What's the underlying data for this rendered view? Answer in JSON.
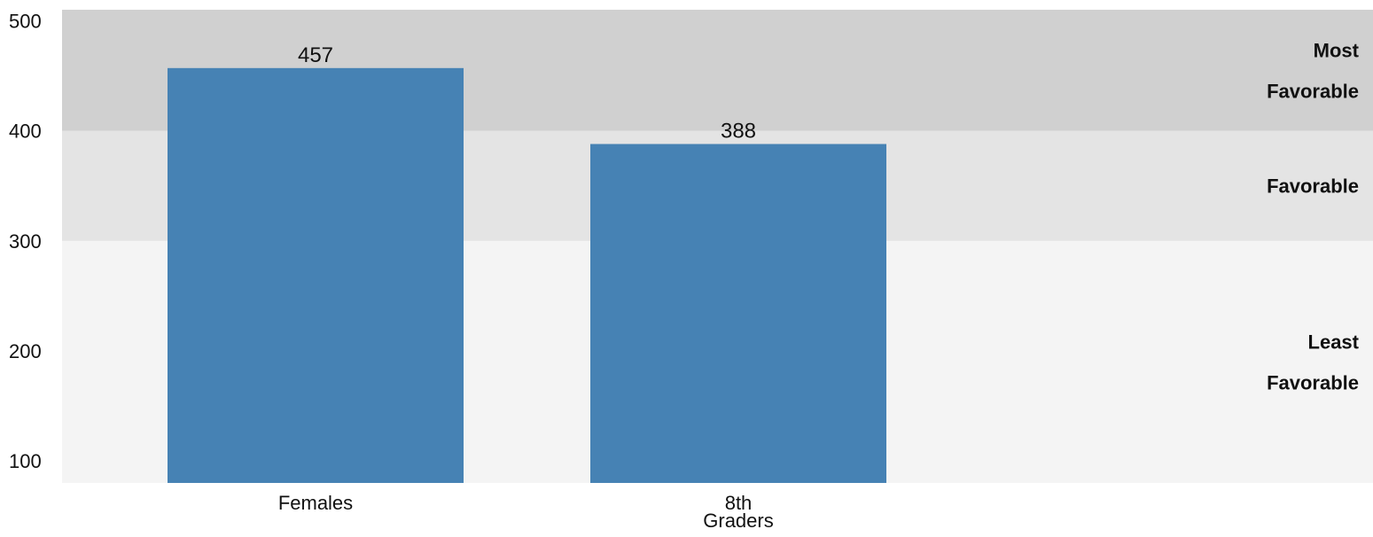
{
  "chart_data": {
    "type": "bar",
    "categories": [
      "Females",
      "8th Graders"
    ],
    "category_lines": [
      [
        "Females"
      ],
      [
        "8th",
        "Graders"
      ]
    ],
    "values": [
      457,
      388
    ],
    "value_labels": [
      "457",
      "388"
    ],
    "ylim": [
      80,
      510
    ],
    "yticks": [
      100,
      200,
      300,
      400,
      500
    ],
    "ytick_labels": [
      "100",
      "200",
      "300",
      "400",
      "500"
    ],
    "grid": false,
    "title": "",
    "xlabel": "",
    "ylabel": "",
    "bar_color": "#4682b4",
    "bands": [
      {
        "from": 80,
        "to": 300,
        "color": "#f4f4f4",
        "label_lines": [
          "Least",
          "Favorable"
        ]
      },
      {
        "from": 300,
        "to": 400,
        "color": "#e4e4e4",
        "label_lines": [
          "Favorable"
        ]
      },
      {
        "from": 400,
        "to": 510,
        "color": "#d0d0d0",
        "label_lines": [
          "Most",
          "Favorable"
        ]
      }
    ]
  }
}
